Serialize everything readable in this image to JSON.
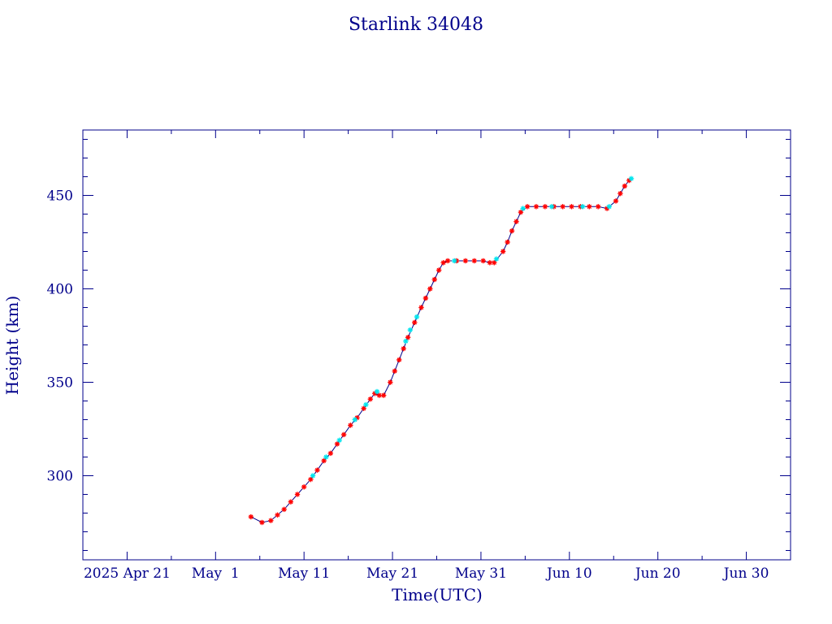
{
  "chart_data": {
    "type": "scatter",
    "title": "Starlink 34048",
    "xlabel": "Time(UTC)",
    "ylabel": "Height (km)",
    "xlim": [
      "2025-04-16",
      "2025-07-05"
    ],
    "ylim": [
      255,
      485
    ],
    "x_tick_labels": [
      "2025 Apr 21",
      "May  1",
      "May 11",
      "May 21",
      "May 31",
      "Jun 10",
      "Jun 20",
      "Jun 30"
    ],
    "x_tick_dates": [
      "2025-04-21",
      "2025-05-01",
      "2025-05-11",
      "2025-05-21",
      "2025-05-31",
      "2025-06-10",
      "2025-06-20",
      "2025-06-30"
    ],
    "y_ticks": [
      300,
      350,
      400,
      450
    ],
    "grid": false,
    "colors": {
      "axes": "#00008b",
      "line": "#00008b",
      "points_primary": "#ff0000",
      "points_secondary": "#00e5ee"
    },
    "series": [
      {
        "color": "#ff0000",
        "marker": "asterisk",
        "points": [
          [
            "2025-05-05T00:00",
            278
          ],
          [
            "2025-05-06T06:00",
            275
          ],
          [
            "2025-05-07T06:00",
            276
          ],
          [
            "2025-05-08T00:00",
            279
          ],
          [
            "2025-05-08T18:00",
            282
          ],
          [
            "2025-05-09T12:00",
            286
          ],
          [
            "2025-05-10T06:00",
            290
          ],
          [
            "2025-05-11T00:00",
            294
          ],
          [
            "2025-05-11T18:00",
            298
          ],
          [
            "2025-05-12T12:00",
            303
          ],
          [
            "2025-05-13T06:00",
            308
          ],
          [
            "2025-05-14T00:00",
            312
          ],
          [
            "2025-05-14T18:00",
            317
          ],
          [
            "2025-05-15T12:00",
            322
          ],
          [
            "2025-05-16T06:00",
            327
          ],
          [
            "2025-05-17T00:00",
            331
          ],
          [
            "2025-05-17T18:00",
            336
          ],
          [
            "2025-05-18T12:00",
            341
          ],
          [
            "2025-05-19T00:00",
            344
          ],
          [
            "2025-05-19T12:00",
            343
          ],
          [
            "2025-05-20T00:00",
            343
          ],
          [
            "2025-05-20T18:00",
            350
          ],
          [
            "2025-05-21T06:00",
            356
          ],
          [
            "2025-05-21T18:00",
            362
          ],
          [
            "2025-05-22T06:00",
            368
          ],
          [
            "2025-05-22T18:00",
            374
          ],
          [
            "2025-05-23T12:00",
            382
          ],
          [
            "2025-05-24T06:00",
            390
          ],
          [
            "2025-05-24T18:00",
            395
          ],
          [
            "2025-05-25T06:00",
            400
          ],
          [
            "2025-05-25T18:00",
            405
          ],
          [
            "2025-05-26T06:00",
            410
          ],
          [
            "2025-05-26T18:00",
            414
          ],
          [
            "2025-05-27T06:00",
            415
          ],
          [
            "2025-05-28T06:00",
            415
          ],
          [
            "2025-05-29T06:00",
            415
          ],
          [
            "2025-05-30T06:00",
            415
          ],
          [
            "2025-05-31T06:00",
            415
          ],
          [
            "2025-06-01T00:00",
            414
          ],
          [
            "2025-06-01T12:00",
            414
          ],
          [
            "2025-06-02T12:00",
            420
          ],
          [
            "2025-06-03T00:00",
            425
          ],
          [
            "2025-06-03T12:00",
            431
          ],
          [
            "2025-06-04T00:00",
            436
          ],
          [
            "2025-06-04T12:00",
            441
          ],
          [
            "2025-06-05T06:00",
            444
          ],
          [
            "2025-06-06T06:00",
            444
          ],
          [
            "2025-06-07T06:00",
            444
          ],
          [
            "2025-06-08T06:00",
            444
          ],
          [
            "2025-06-09T06:00",
            444
          ],
          [
            "2025-06-10T06:00",
            444
          ],
          [
            "2025-06-11T06:00",
            444
          ],
          [
            "2025-06-12T06:00",
            444
          ],
          [
            "2025-06-13T06:00",
            444
          ],
          [
            "2025-06-14T06:00",
            443
          ],
          [
            "2025-06-15T06:00",
            447
          ],
          [
            "2025-06-15T18:00",
            451
          ],
          [
            "2025-06-16T06:00",
            455
          ],
          [
            "2025-06-16T18:00",
            458
          ]
        ]
      },
      {
        "color": "#00e5ee",
        "marker": "asterisk",
        "points": [
          [
            "2025-05-12T00:00",
            300
          ],
          [
            "2025-05-13T12:00",
            310
          ],
          [
            "2025-05-15T00:00",
            319
          ],
          [
            "2025-05-16T18:00",
            330
          ],
          [
            "2025-05-18T00:00",
            338
          ],
          [
            "2025-05-19T06:00",
            345
          ],
          [
            "2025-05-22T12:00",
            372
          ],
          [
            "2025-05-23T00:00",
            378
          ],
          [
            "2025-05-23T18:00",
            385
          ],
          [
            "2025-05-28T00:00",
            415
          ],
          [
            "2025-06-01T18:00",
            416
          ],
          [
            "2025-06-04T18:00",
            443
          ],
          [
            "2025-06-08T00:00",
            444
          ],
          [
            "2025-06-11T12:00",
            444
          ],
          [
            "2025-06-14T12:00",
            444
          ],
          [
            "2025-06-17T00:00",
            459
          ]
        ]
      }
    ]
  }
}
